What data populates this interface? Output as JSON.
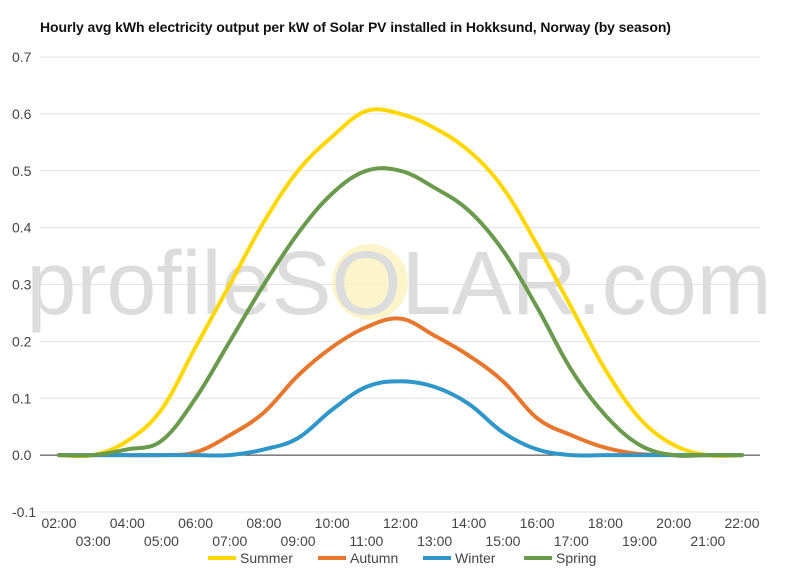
{
  "chart_data": {
    "type": "line",
    "title": "Hourly avg kWh electricity output per kW of Solar PV installed in Hokksund, Norway (by season)",
    "xlabel": "",
    "ylabel": "",
    "ylim": [
      -0.1,
      0.7
    ],
    "yticks": [
      "-0.1",
      "0.0",
      "0.1",
      "0.2",
      "0.3",
      "0.4",
      "0.5",
      "0.6",
      "0.7"
    ],
    "x": [
      "02:00",
      "03:00",
      "04:00",
      "05:00",
      "06:00",
      "07:00",
      "08:00",
      "09:00",
      "10:00",
      "11:00",
      "12:00",
      "13:00",
      "14:00",
      "15:00",
      "16:00",
      "17:00",
      "18:00",
      "19:00",
      "20:00",
      "21:00",
      "22:00"
    ],
    "grid": true,
    "legend_position": "bottom",
    "watermark": "profileSOLAR.com",
    "series": [
      {
        "name": "Summer",
        "color": "#ffd700",
        "values": [
          0.0,
          0.0,
          0.025,
          0.08,
          0.19,
          0.3,
          0.41,
          0.5,
          0.56,
          0.605,
          0.6,
          0.575,
          0.535,
          0.47,
          0.37,
          0.26,
          0.15,
          0.065,
          0.018,
          0.0,
          0.0
        ]
      },
      {
        "name": "Autumn",
        "color": "#e8772e",
        "values": [
          0.0,
          0.0,
          0.0,
          0.0,
          0.005,
          0.035,
          0.075,
          0.14,
          0.19,
          0.225,
          0.24,
          0.21,
          0.175,
          0.13,
          0.065,
          0.035,
          0.013,
          0.002,
          0.0,
          0.0,
          0.0
        ]
      },
      {
        "name": "Winter",
        "color": "#2e96c8",
        "values": [
          0.0,
          0.0,
          0.0,
          0.0,
          0.0,
          0.0,
          0.01,
          0.03,
          0.08,
          0.12,
          0.13,
          0.12,
          0.09,
          0.04,
          0.01,
          0.0,
          0.0,
          0.0,
          0.0,
          0.0,
          0.0
        ]
      },
      {
        "name": "Spring",
        "color": "#6a9a4c",
        "values": [
          0.0,
          0.0,
          0.01,
          0.025,
          0.1,
          0.2,
          0.3,
          0.39,
          0.46,
          0.5,
          0.5,
          0.47,
          0.43,
          0.36,
          0.26,
          0.15,
          0.07,
          0.018,
          0.0,
          0.0,
          0.0
        ]
      }
    ]
  }
}
